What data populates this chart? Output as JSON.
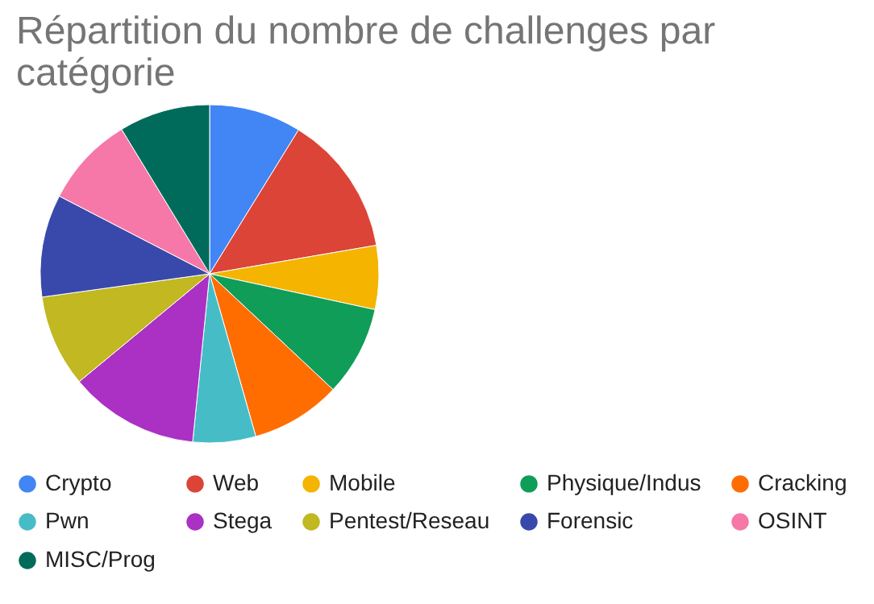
{
  "chart_data": {
    "type": "pie",
    "title": "Répartition du nombre de challenges par catégorie",
    "categories": [
      "Crypto",
      "Web",
      "Mobile",
      "Physique/Indus",
      "Cracking",
      "Pwn",
      "Stega",
      "Pentest/Reseau",
      "Forensic",
      "OSINT",
      "MISC/Prog"
    ],
    "values": [
      8.8,
      13.5,
      6.1,
      8.6,
      8.6,
      6.0,
      12.4,
      8.8,
      9.8,
      8.7,
      8.7
    ],
    "colors": [
      "#4285f4",
      "#db4437",
      "#f4b400",
      "#0f9d58",
      "#ff6d01",
      "#46bdc6",
      "#ab30c4",
      "#c1b822",
      "#3949ab",
      "#f678a8",
      "#006b5a"
    ],
    "legend": "bottom"
  }
}
